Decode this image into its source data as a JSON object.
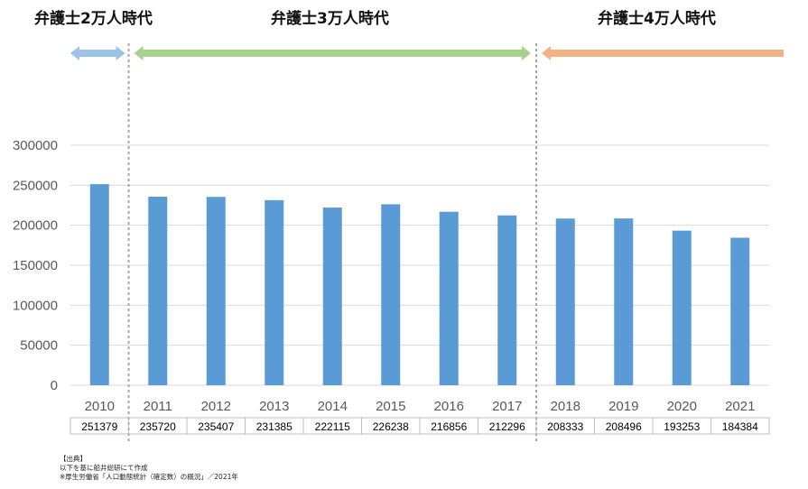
{
  "eras": [
    {
      "label": "弁護士2万人時代",
      "color": "#9DC3E6"
    },
    {
      "label": "弁護士3万人時代",
      "color": "#A9D18E"
    },
    {
      "label": "弁護士4万人時代",
      "color": "#F4B183"
    }
  ],
  "source": {
    "heading": "【出典】",
    "line1": "以下を基に船井総研にて作成",
    "line2": "※厚生労働省「人口動態統計（確定数）の概況」／2021年"
  },
  "colors": {
    "bar": "#5B9BD5",
    "grid": "#D9D9D9",
    "divider": "#A6A6A6"
  },
  "chart_data": {
    "type": "bar",
    "categories": [
      "2010",
      "2011",
      "2012",
      "2013",
      "2014",
      "2015",
      "2016",
      "2017",
      "2018",
      "2019",
      "2020",
      "2021"
    ],
    "values": [
      251379,
      235720,
      235407,
      231385,
      222115,
      226238,
      216856,
      212296,
      208333,
      208496,
      193253,
      184384
    ],
    "yticks": [
      "0",
      "50000",
      "100000",
      "150000",
      "200000",
      "250000",
      "300000"
    ],
    "ylim": [
      0,
      300000
    ],
    "grid": true,
    "data_table": true
  }
}
